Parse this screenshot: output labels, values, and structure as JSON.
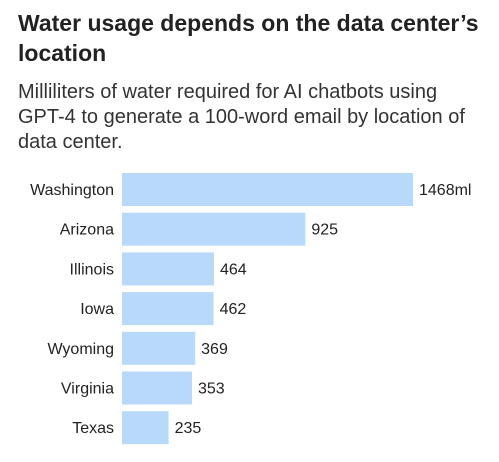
{
  "title": "Water usage depends on the data center’s location",
  "subtitle": "Milliliters of water required for AI chatbots using GPT-4 to generate a 100-word email by location of data center.",
  "colors": {
    "bar": "#b9d9fb"
  },
  "chart_data": {
    "type": "bar",
    "orientation": "horizontal",
    "title": "Water usage depends on the data center’s location",
    "subtitle": "Milliliters of water required for AI chatbots using GPT-4 to generate a 100-word email by location of data center.",
    "categories": [
      "Washington",
      "Arizona",
      "Illinois",
      "Iowa",
      "Wyoming",
      "Virginia",
      "Texas"
    ],
    "values": [
      1468,
      925,
      464,
      462,
      369,
      353,
      235
    ],
    "value_labels": [
      "1468ml",
      "925",
      "464",
      "462",
      "369",
      "353",
      "235"
    ],
    "xlim": [
      0,
      1468
    ],
    "grid": false,
    "legend": "none"
  }
}
